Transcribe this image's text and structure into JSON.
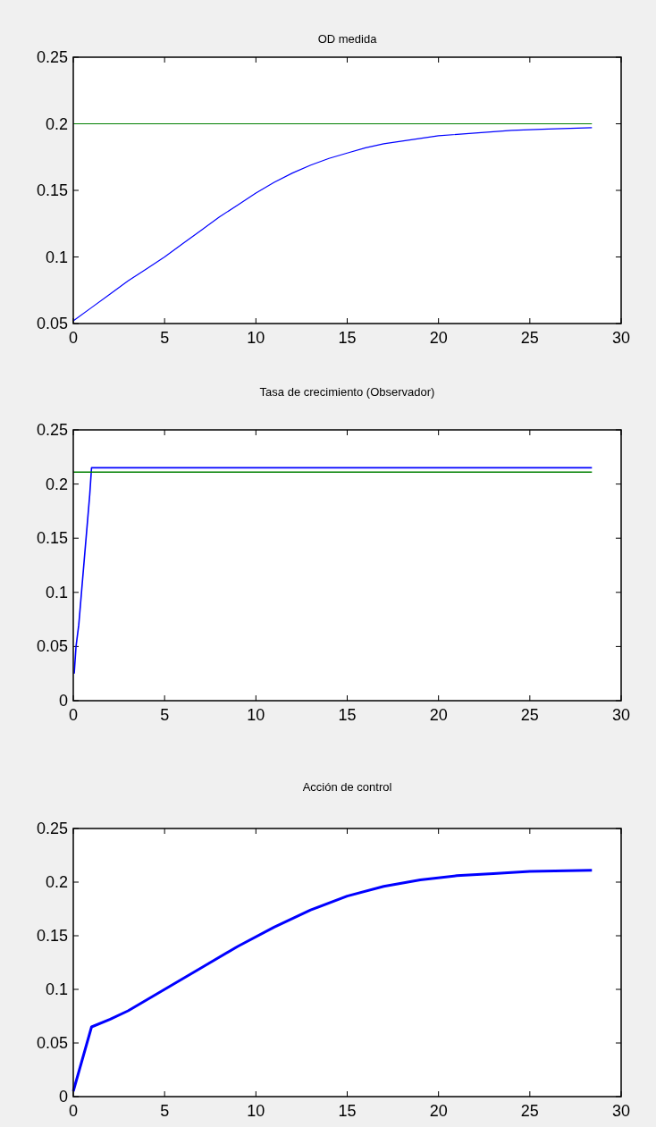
{
  "chart_data": [
    {
      "type": "line",
      "title": "OD medida",
      "xlim": [
        0,
        30
      ],
      "xticks": [
        0,
        5,
        10,
        15,
        20,
        25,
        30
      ],
      "ylim": [
        0.05,
        0.25
      ],
      "yticks": [
        0.05,
        0.1,
        0.15,
        0.2,
        0.25
      ],
      "grid": false,
      "series": [
        {
          "color": "#0000ff",
          "x": [
            0,
            1,
            2,
            3,
            4,
            5,
            6,
            7,
            8,
            9,
            10,
            11,
            12,
            13,
            14,
            15,
            16,
            17,
            18,
            20,
            22,
            24,
            26,
            28.4
          ],
          "values": [
            0.052,
            0.062,
            0.072,
            0.082,
            0.091,
            0.1,
            0.11,
            0.12,
            0.13,
            0.139,
            0.148,
            0.156,
            0.163,
            0.169,
            0.174,
            0.178,
            0.182,
            0.185,
            0.187,
            0.191,
            0.193,
            0.195,
            0.196,
            0.197
          ]
        },
        {
          "color": "#008000",
          "x": [
            0,
            28.4
          ],
          "values": [
            0.2,
            0.2
          ]
        }
      ]
    },
    {
      "type": "line",
      "title": "Tasa de crecimiento (Observador)",
      "xlim": [
        0,
        30
      ],
      "xticks": [
        0,
        5,
        10,
        15,
        20,
        25,
        30
      ],
      "ylim": [
        0,
        0.25
      ],
      "yticks": [
        0,
        0.05,
        0.1,
        0.15,
        0.2,
        0.25
      ],
      "grid": false,
      "series": [
        {
          "color": "#0000ff",
          "x": [
            0.05,
            0.15,
            0.3,
            0.45,
            0.6,
            0.75,
            0.9,
            1.0,
            4.5,
            10,
            20,
            28.4
          ],
          "values": [
            0.025,
            0.05,
            0.07,
            0.1,
            0.13,
            0.16,
            0.19,
            0.215,
            0.215,
            0.215,
            0.215,
            0.215
          ]
        },
        {
          "color": "#008000",
          "x": [
            0,
            28.4
          ],
          "values": [
            0.211,
            0.211
          ]
        }
      ]
    },
    {
      "type": "line",
      "title": "Acción de control",
      "xlim": [
        0,
        30
      ],
      "xticks": [
        0,
        5,
        10,
        15,
        20,
        25,
        30
      ],
      "ylim": [
        0,
        0.25
      ],
      "yticks": [
        0,
        0.05,
        0.1,
        0.15,
        0.2,
        0.25
      ],
      "grid": false,
      "series": [
        {
          "color": "#0000ff",
          "x": [
            0,
            1,
            2,
            3,
            5,
            7,
            9,
            11,
            13,
            15,
            17,
            19,
            21,
            23,
            25,
            28.4
          ],
          "values": [
            0.005,
            0.065,
            0.072,
            0.08,
            0.1,
            0.12,
            0.14,
            0.158,
            0.174,
            0.187,
            0.196,
            0.202,
            0.206,
            0.208,
            0.21,
            0.211
          ]
        }
      ]
    }
  ]
}
